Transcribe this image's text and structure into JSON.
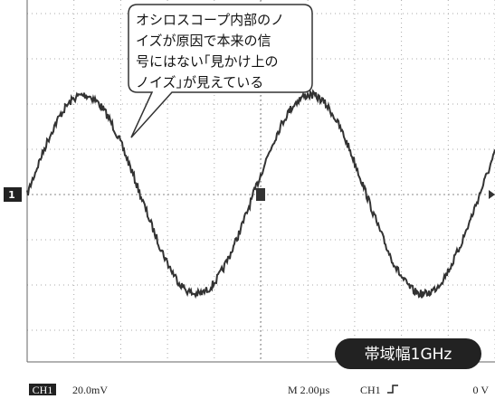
{
  "callout": {
    "lines": [
      "オシロスコープ内部のノ",
      "イズが原因で本来の信",
      "号にはない｢見かけ上の",
      "ノイズ｣が見えている"
    ]
  },
  "badge": "帯域幅1GHz",
  "marker": "1",
  "status": {
    "channel": "CH1",
    "scale": "20.0mV",
    "timebase": "M 2.00µs",
    "trigger_source": "CH1",
    "trigger_level": "0 V"
  }
}
